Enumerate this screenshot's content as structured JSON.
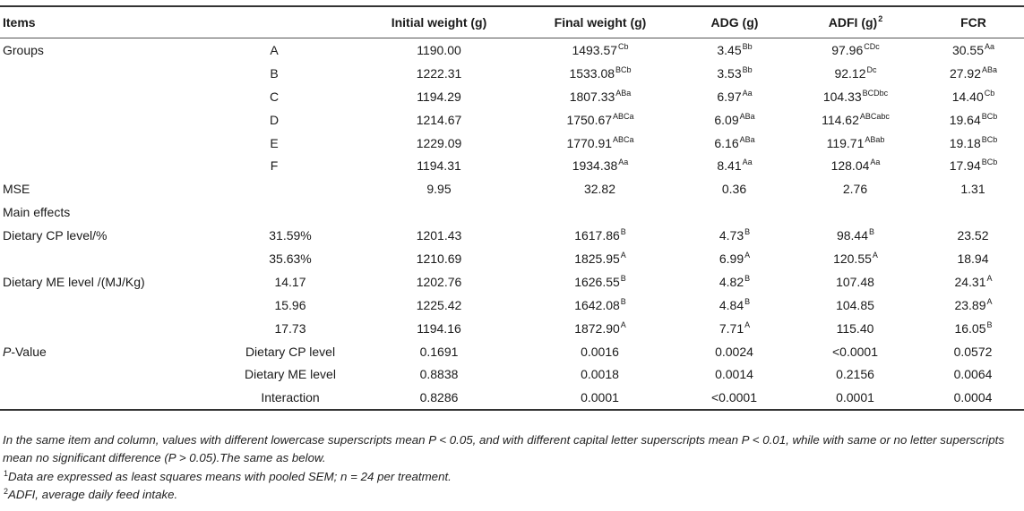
{
  "header": {
    "items": "Items",
    "initial": "Initial weight (g)",
    "final": "Final weight (g)",
    "adg": "ADG (g)",
    "adfi": "ADFI (g)",
    "adfi_sup": "2",
    "fcr": "FCR"
  },
  "rows": [
    {
      "c1": "Groups",
      "c2": "A",
      "c3": "1190.00",
      "c4": "1493.57",
      "c4s": "Cb",
      "c5": "3.45",
      "c5s": "Bb",
      "c6": "97.96",
      "c6s": "CDc",
      "c7": "30.55",
      "c7s": "Aa"
    },
    {
      "c1": "",
      "c2": "B",
      "c3": "1222.31",
      "c4": "1533.08",
      "c4s": "BCb",
      "c5": "3.53",
      "c5s": "Bb",
      "c6": "92.12",
      "c6s": "Dc",
      "c7": "27.92",
      "c7s": "ABa"
    },
    {
      "c1": "",
      "c2": "C",
      "c3": "1194.29",
      "c4": "1807.33",
      "c4s": "ABa",
      "c5": "6.97",
      "c5s": "Aa",
      "c6": "104.33",
      "c6s": "BCDbc",
      "c7": "14.40",
      "c7s": "Cb"
    },
    {
      "c1": "",
      "c2": "D",
      "c3": "1214.67",
      "c4": "1750.67",
      "c4s": "ABCa",
      "c5": "6.09",
      "c5s": "ABa",
      "c6": "114.62",
      "c6s": "ABCabc",
      "c7": "19.64",
      "c7s": "BCb"
    },
    {
      "c1": "",
      "c2": "E",
      "c3": "1229.09",
      "c4": "1770.91",
      "c4s": "ABCa",
      "c5": "6.16",
      "c5s": "ABa",
      "c6": "119.71",
      "c6s": "ABab",
      "c7": "19.18",
      "c7s": "BCb"
    },
    {
      "c1": "",
      "c2": "F",
      "c3": "1194.31",
      "c4": "1934.38",
      "c4s": "Aa",
      "c5": "8.41",
      "c5s": "Aa",
      "c6": "128.04",
      "c6s": "Aa",
      "c7": "17.94",
      "c7s": "BCb"
    },
    {
      "c1": "MSE",
      "c2": "",
      "c3": "9.95",
      "c4": "32.82",
      "c4s": "",
      "c5": "0.36",
      "c5s": "",
      "c6": "2.76",
      "c6s": "",
      "c7": "1.31",
      "c7s": ""
    },
    {
      "c1": "Main effects",
      "c2": "",
      "c3": "",
      "c4": "",
      "c4s": "",
      "c5": "",
      "c5s": "",
      "c6": "",
      "c6s": "",
      "c7": "",
      "c7s": ""
    },
    {
      "c1": "Dietary CP level/%",
      "c2": "31.59%",
      "c3": "1201.43",
      "c4": "1617.86",
      "c4s": "B",
      "c5": "4.73",
      "c5s": "B",
      "c6": "98.44",
      "c6s": "B",
      "c7": "23.52",
      "c7s": ""
    },
    {
      "c1": "",
      "c2": "35.63%",
      "c3": "1210.69",
      "c4": "1825.95",
      "c4s": "A",
      "c5": "6.99",
      "c5s": "A",
      "c6": "120.55",
      "c6s": "A",
      "c7": "18.94",
      "c7s": ""
    },
    {
      "c1": "Dietary ME level /(MJ/Kg)",
      "c2": "14.17",
      "c3": "1202.76",
      "c4": "1626.55",
      "c4s": "B",
      "c5": "4.82",
      "c5s": "B",
      "c6": "107.48",
      "c6s": "",
      "c7": "24.31",
      "c7s": "A"
    },
    {
      "c1": "",
      "c2": "15.96",
      "c3": "1225.42",
      "c4": "1642.08",
      "c4s": "B",
      "c5": "4.84",
      "c5s": "B",
      "c6": "104.85",
      "c6s": "",
      "c7": "23.89",
      "c7s": "A"
    },
    {
      "c1": "",
      "c2": "17.73",
      "c3": "1194.16",
      "c4": "1872.90",
      "c4s": "A",
      "c5": "7.71",
      "c5s": "A",
      "c6": "115.40",
      "c6s": "",
      "c7": "16.05",
      "c7s": "B"
    },
    {
      "c1": "P-Value",
      "c2": "Dietary CP level",
      "c3": "0.1691",
      "c4": "0.0016",
      "c4s": "",
      "c5": "0.0024",
      "c5s": "",
      "c6": "<0.0001",
      "c6s": "",
      "c7": "0.0572",
      "c7s": ""
    },
    {
      "c1": "",
      "c2": "Dietary ME level",
      "c3": "0.8838",
      "c4": "0.0018",
      "c4s": "",
      "c5": "0.0014",
      "c5s": "",
      "c6": "0.2156",
      "c6s": "",
      "c7": "0.0064",
      "c7s": ""
    },
    {
      "c1": "",
      "c2": "Interaction",
      "c3": "0.8286",
      "c4": "0.0001",
      "c4s": "",
      "c5": "<0.0001",
      "c5s": "",
      "c6": "0.0001",
      "c6s": "",
      "c7": "0.0004",
      "c7s": ""
    }
  ],
  "notes": {
    "line1": "In the same item and column, values with different lowercase superscripts mean P < 0.05, and with different capital letter superscripts mean P < 0.01, while with same or no letter superscripts mean no significant difference (P > 0.05).The same as below.",
    "n1_sup": "1",
    "n1": "Data are expressed as least squares means with pooled SEM; n = 24 per treatment.",
    "n2_sup": "2",
    "n2": "ADFI, average daily feed intake."
  }
}
